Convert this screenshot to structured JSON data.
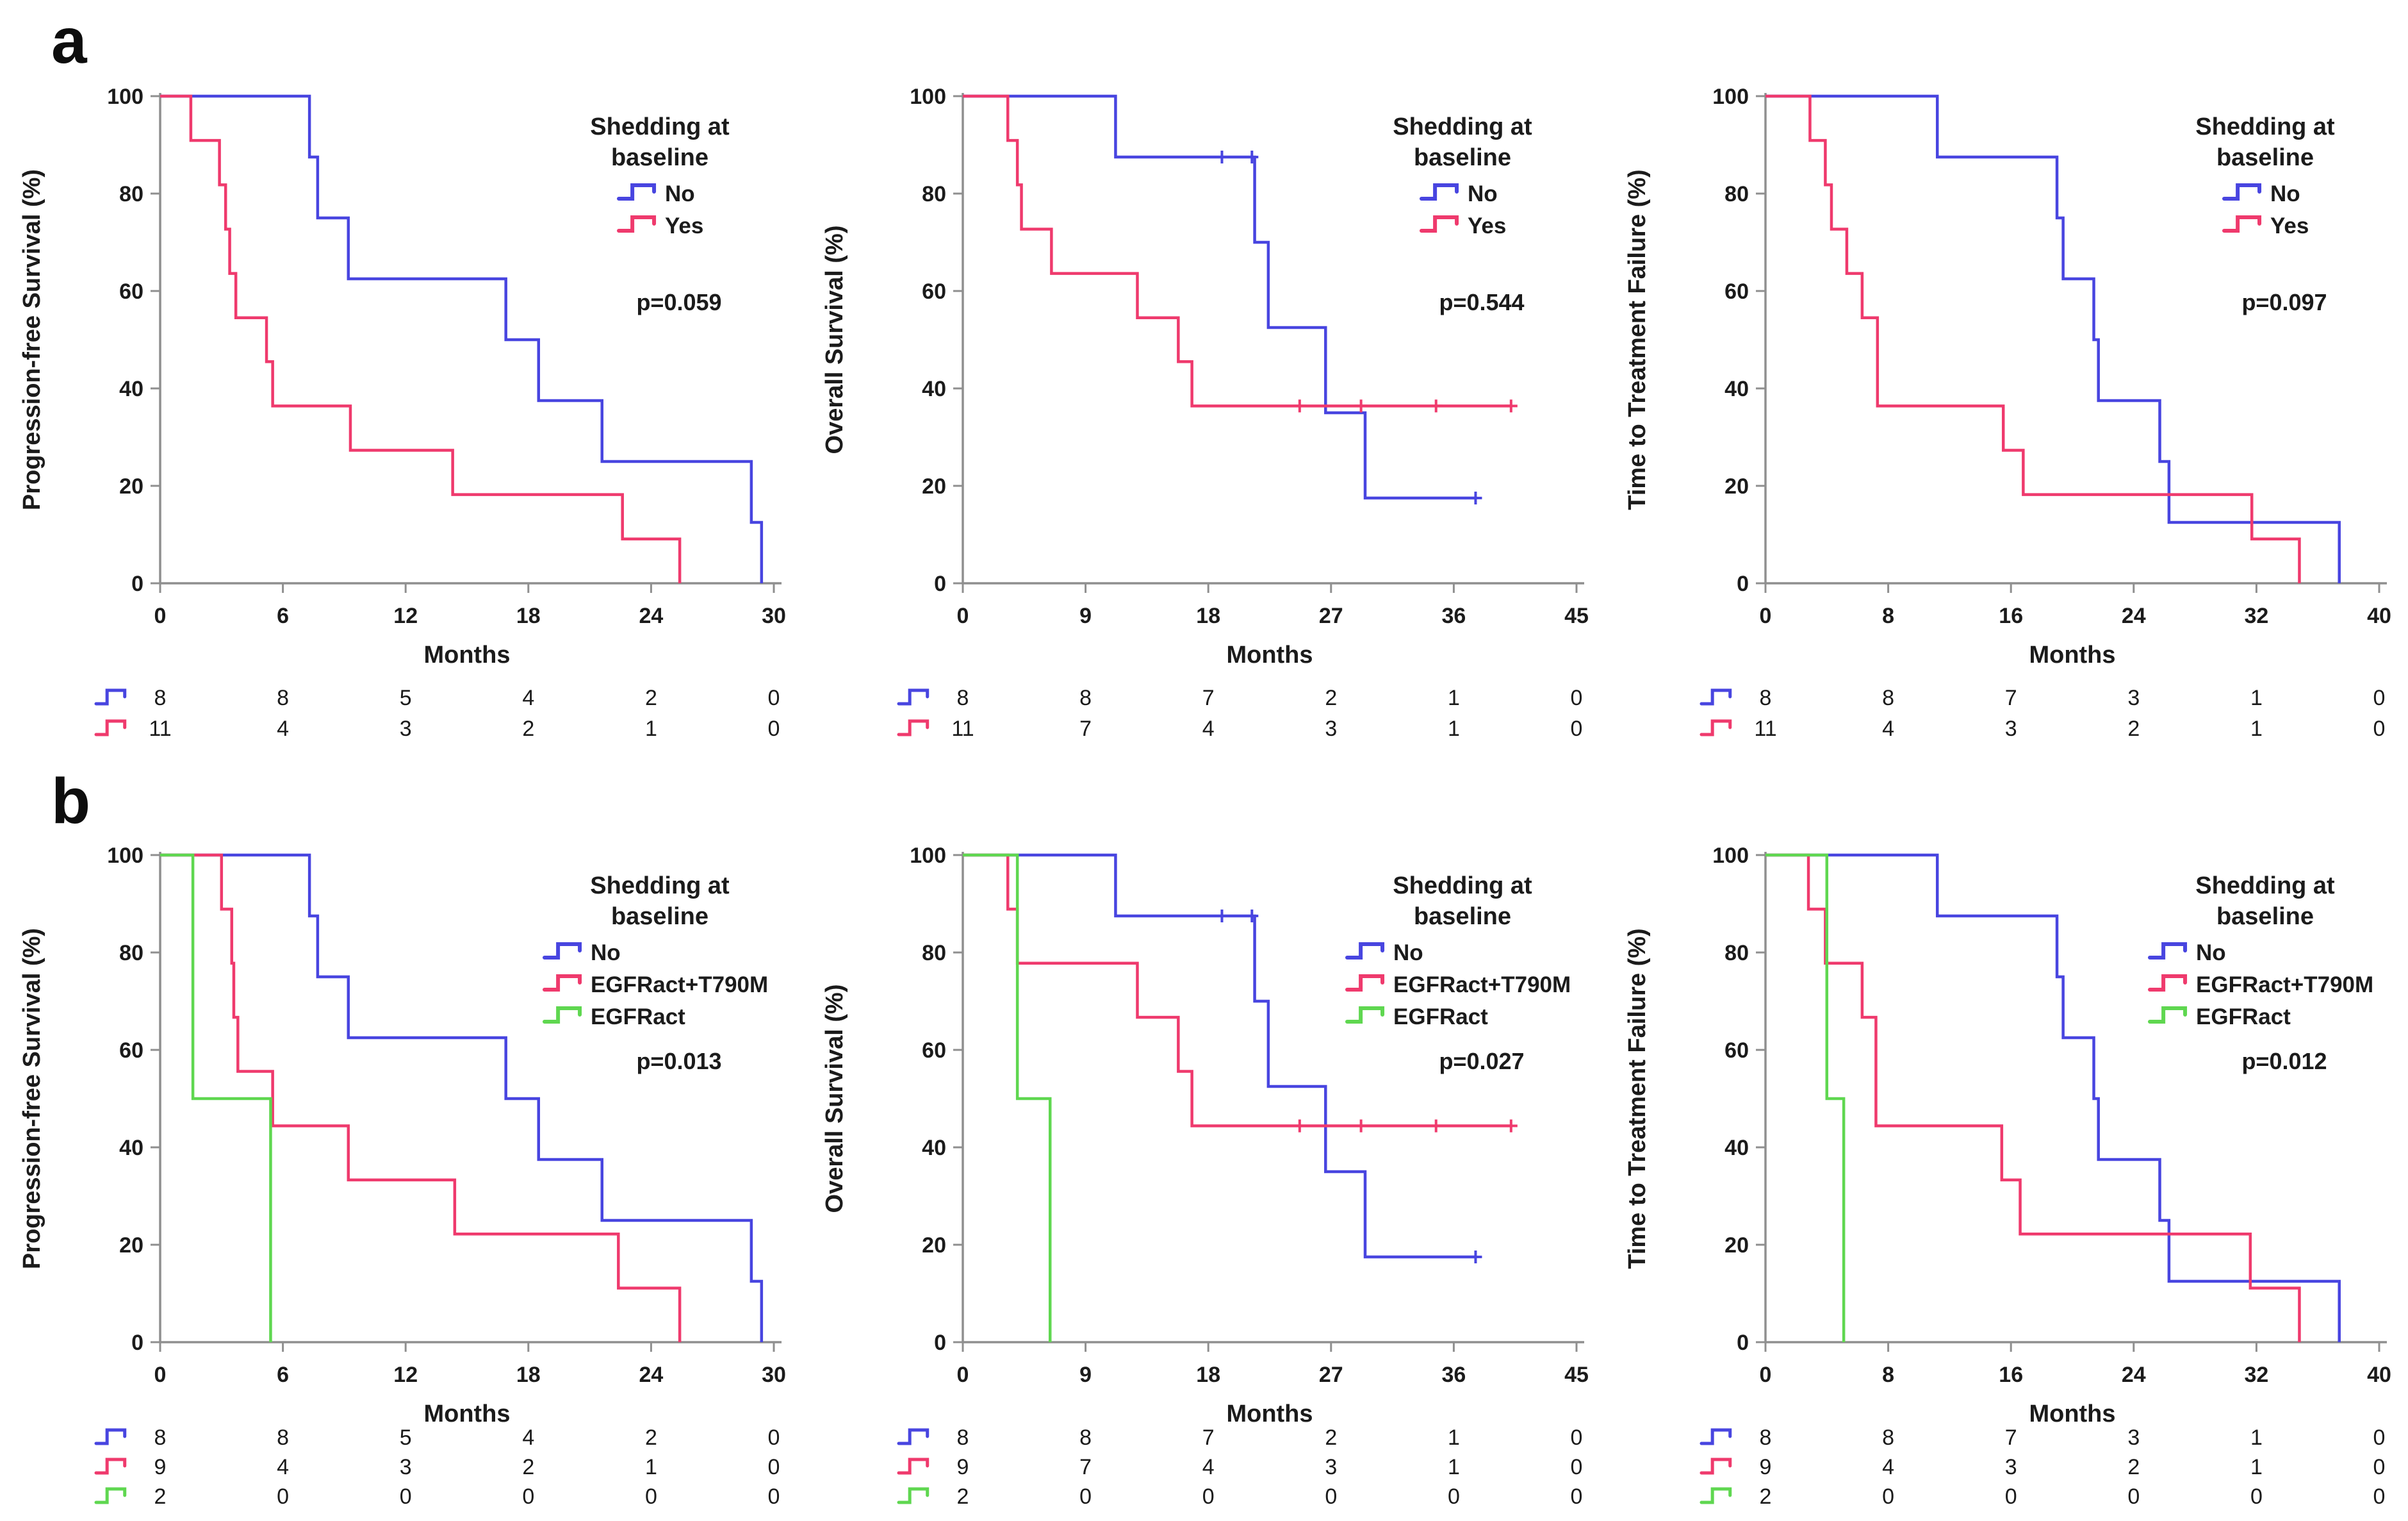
{
  "figure": {
    "background": "#ffffff",
    "rows": [
      {
        "label": "a"
      },
      {
        "label": "b"
      }
    ],
    "legend_title": [
      "Shedding at",
      "baseline"
    ],
    "xlabel": "Months"
  },
  "colors": {
    "no": "#4845e0",
    "yes": "#ef3a6d",
    "egfract_t790m": "#ef3a6d",
    "egfract": "#5fd750",
    "axis": "#8f8f8f",
    "text": "#1b1b1b"
  },
  "chart_data": [
    {
      "id": "a-progression-free-survival",
      "type": "line",
      "km_step": true,
      "ylabel": "Progression-free Survival (%)",
      "xlabel": "Months",
      "p_value": "p=0.059",
      "xlim": [
        0,
        30
      ],
      "xticks": [
        0,
        6,
        12,
        18,
        24,
        30
      ],
      "ylim": [
        0,
        100
      ],
      "yticks": [
        0,
        20,
        40,
        60,
        80,
        100
      ],
      "grid": false,
      "legend_position": "top-right",
      "legend_title": [
        "Shedding at",
        "baseline"
      ],
      "series": [
        {
          "name": "No",
          "color_key": "no",
          "censors": [],
          "steps": [
            [
              0,
              100
            ],
            [
              7.3,
              87.5
            ],
            [
              7.7,
              75
            ],
            [
              9.2,
              62.5
            ],
            [
              16.9,
              50
            ],
            [
              18.5,
              37.5
            ],
            [
              21.6,
              25
            ],
            [
              28.9,
              12.5
            ],
            [
              29.4,
              0
            ]
          ]
        },
        {
          "name": "Yes",
          "color_key": "yes",
          "censors": [],
          "steps": [
            [
              0,
              100
            ],
            [
              1.5,
              90.9
            ],
            [
              2.9,
              81.8
            ],
            [
              3.2,
              72.7
            ],
            [
              3.4,
              63.6
            ],
            [
              3.7,
              54.5
            ],
            [
              5.2,
              45.5
            ],
            [
              5.5,
              36.4
            ],
            [
              9.3,
              27.3
            ],
            [
              14.3,
              18.2
            ],
            [
              22.6,
              9.1
            ],
            [
              25.4,
              0
            ]
          ]
        }
      ],
      "at_risk": {
        "times": [
          0,
          6,
          12,
          18,
          24,
          30
        ],
        "rows": [
          {
            "name": "No",
            "color_key": "no",
            "counts": [
              8,
              8,
              5,
              4,
              2,
              0
            ]
          },
          {
            "name": "Yes",
            "color_key": "yes",
            "counts": [
              11,
              4,
              3,
              2,
              1,
              0
            ]
          }
        ]
      }
    },
    {
      "id": "a-overall-survival",
      "type": "line",
      "km_step": true,
      "ylabel": "Overall Survival (%)",
      "xlabel": "Months",
      "p_value": "p=0.544",
      "xlim": [
        0,
        45
      ],
      "xticks": [
        0,
        9,
        18,
        27,
        36,
        45
      ],
      "ylim": [
        0,
        100
      ],
      "yticks": [
        0,
        20,
        40,
        60,
        80,
        100
      ],
      "grid": false,
      "legend_position": "top-right",
      "legend_title": [
        "Shedding at",
        "baseline"
      ],
      "series": [
        {
          "name": "No",
          "color_key": "no",
          "end": 37.6,
          "censors": [
            [
              19,
              87.5
            ],
            [
              21.2,
              87.5
            ],
            [
              37.6,
              17.5
            ]
          ],
          "steps": [
            [
              0,
              100
            ],
            [
              11.2,
              87.5
            ],
            [
              21.4,
              70
            ],
            [
              22.4,
              52.5
            ],
            [
              26.6,
              35
            ],
            [
              29.5,
              17.5
            ]
          ]
        },
        {
          "name": "Yes",
          "color_key": "yes",
          "end": 40.2,
          "censors": [
            [
              24.7,
              36.4
            ],
            [
              29.2,
              36.4
            ],
            [
              34.7,
              36.4
            ],
            [
              40.2,
              36.4
            ]
          ],
          "steps": [
            [
              0,
              100
            ],
            [
              3.3,
              90.9
            ],
            [
              4,
              81.8
            ],
            [
              4.3,
              72.7
            ],
            [
              6.5,
              63.6
            ],
            [
              12.8,
              54.5
            ],
            [
              15.8,
              45.5
            ],
            [
              16.8,
              36.4
            ]
          ]
        }
      ],
      "at_risk": {
        "times": [
          0,
          9,
          18,
          27,
          36,
          45
        ],
        "rows": [
          {
            "name": "No",
            "color_key": "no",
            "counts": [
              8,
              8,
              7,
              2,
              1,
              0
            ]
          },
          {
            "name": "Yes",
            "color_key": "yes",
            "counts": [
              11,
              7,
              4,
              3,
              1,
              0
            ]
          }
        ]
      }
    },
    {
      "id": "a-time-to-treatment-failure",
      "type": "line",
      "km_step": true,
      "ylabel": "Time to Treatment Failure (%)",
      "xlabel": "Months",
      "p_value": "p=0.097",
      "xlim": [
        0,
        40
      ],
      "xticks": [
        0,
        8,
        16,
        24,
        32,
        40
      ],
      "ylim": [
        0,
        100
      ],
      "yticks": [
        0,
        20,
        40,
        60,
        80,
        100
      ],
      "grid": false,
      "legend_position": "top-right",
      "legend_title": [
        "Shedding at",
        "baseline"
      ],
      "series": [
        {
          "name": "No",
          "color_key": "no",
          "censors": [],
          "steps": [
            [
              0,
              100
            ],
            [
              11.2,
              87.5
            ],
            [
              19,
              75
            ],
            [
              19.4,
              62.5
            ],
            [
              21.4,
              50
            ],
            [
              21.7,
              37.5
            ],
            [
              25.7,
              25
            ],
            [
              26.3,
              12.5
            ],
            [
              37.4,
              0
            ]
          ]
        },
        {
          "name": "Yes",
          "color_key": "yes",
          "censors": [],
          "steps": [
            [
              0,
              100
            ],
            [
              2.9,
              90.9
            ],
            [
              3.9,
              81.8
            ],
            [
              4.3,
              72.7
            ],
            [
              5.3,
              63.6
            ],
            [
              6.3,
              54.5
            ],
            [
              7.3,
              36.4
            ],
            [
              15.5,
              27.3
            ],
            [
              16.8,
              18.2
            ],
            [
              31.7,
              9.1
            ],
            [
              34.8,
              0
            ]
          ]
        }
      ],
      "at_risk": {
        "times": [
          0,
          8,
          16,
          24,
          32,
          40
        ],
        "rows": [
          {
            "name": "No",
            "color_key": "no",
            "counts": [
              8,
              8,
              7,
              3,
              1,
              0
            ]
          },
          {
            "name": "Yes",
            "color_key": "yes",
            "counts": [
              11,
              4,
              3,
              2,
              1,
              0
            ]
          }
        ]
      }
    },
    {
      "id": "b-progression-free-survival",
      "type": "line",
      "km_step": true,
      "ylabel": "Progression-free Survival (%)",
      "xlabel": "Months",
      "p_value": "p=0.013",
      "xlim": [
        0,
        30
      ],
      "xticks": [
        0,
        6,
        12,
        18,
        24,
        30
      ],
      "ylim": [
        0,
        100
      ],
      "yticks": [
        0,
        20,
        40,
        60,
        80,
        100
      ],
      "grid": false,
      "legend_position": "top-right",
      "legend_title": [
        "Shedding at",
        "baseline"
      ],
      "series": [
        {
          "name": "No",
          "color_key": "no",
          "censors": [],
          "steps": [
            [
              0,
              100
            ],
            [
              7.3,
              87.5
            ],
            [
              7.7,
              75
            ],
            [
              9.2,
              62.5
            ],
            [
              16.9,
              50
            ],
            [
              18.5,
              37.5
            ],
            [
              21.6,
              25
            ],
            [
              28.9,
              12.5
            ],
            [
              29.4,
              0
            ]
          ]
        },
        {
          "name": "EGFRact+T790M",
          "color_key": "egfract_t790m",
          "censors": [],
          "steps": [
            [
              0,
              100
            ],
            [
              3,
              88.9
            ],
            [
              3.5,
              77.8
            ],
            [
              3.6,
              66.7
            ],
            [
              3.8,
              55.6
            ],
            [
              5.5,
              44.4
            ],
            [
              9.2,
              33.3
            ],
            [
              14.4,
              22.2
            ],
            [
              22.4,
              11.1
            ],
            [
              25.4,
              0
            ]
          ]
        },
        {
          "name": "EGFRact",
          "color_key": "egfract",
          "censors": [],
          "steps": [
            [
              0,
              100
            ],
            [
              1.6,
              50
            ],
            [
              5.4,
              0
            ]
          ]
        }
      ],
      "at_risk": {
        "times": [
          0,
          6,
          12,
          18,
          24,
          30
        ],
        "rows": [
          {
            "name": "No",
            "color_key": "no",
            "counts": [
              8,
              8,
              5,
              4,
              2,
              0
            ]
          },
          {
            "name": "EGFRact+T790M",
            "color_key": "egfract_t790m",
            "counts": [
              9,
              4,
              3,
              2,
              1,
              0
            ]
          },
          {
            "name": "EGFRact",
            "color_key": "egfract",
            "counts": [
              2,
              0,
              0,
              0,
              0,
              0
            ]
          }
        ]
      }
    },
    {
      "id": "b-overall-survival",
      "type": "line",
      "km_step": true,
      "ylabel": "Overall Survival (%)",
      "xlabel": "Months",
      "p_value": "p=0.027",
      "xlim": [
        0,
        45
      ],
      "xticks": [
        0,
        9,
        18,
        27,
        36,
        45
      ],
      "ylim": [
        0,
        100
      ],
      "yticks": [
        0,
        20,
        40,
        60,
        80,
        100
      ],
      "grid": false,
      "legend_position": "top-right",
      "legend_title": [
        "Shedding at",
        "baseline"
      ],
      "series": [
        {
          "name": "No",
          "color_key": "no",
          "end": 37.6,
          "censors": [
            [
              19,
              87.5
            ],
            [
              21.2,
              87.5
            ],
            [
              37.6,
              17.5
            ]
          ],
          "steps": [
            [
              0,
              100
            ],
            [
              11.2,
              87.5
            ],
            [
              21.4,
              70
            ],
            [
              22.4,
              52.5
            ],
            [
              26.6,
              35
            ],
            [
              29.5,
              17.5
            ]
          ]
        },
        {
          "name": "EGFRact+T790M",
          "color_key": "egfract_t790m",
          "end": 40.2,
          "censors": [
            [
              24.7,
              44.4
            ],
            [
              29.2,
              44.4
            ],
            [
              34.7,
              44.4
            ],
            [
              40.2,
              44.4
            ]
          ],
          "steps": [
            [
              0,
              100
            ],
            [
              3.3,
              88.9
            ],
            [
              4,
              77.8
            ],
            [
              12.8,
              66.7
            ],
            [
              15.8,
              55.6
            ],
            [
              16.8,
              44.4
            ]
          ]
        },
        {
          "name": "EGFRact",
          "color_key": "egfract",
          "censors": [],
          "steps": [
            [
              0,
              100
            ],
            [
              4,
              50
            ],
            [
              6.4,
              0
            ]
          ]
        }
      ],
      "at_risk": {
        "times": [
          0,
          9,
          18,
          27,
          36,
          45
        ],
        "rows": [
          {
            "name": "No",
            "color_key": "no",
            "counts": [
              8,
              8,
              7,
              2,
              1,
              0
            ]
          },
          {
            "name": "EGFRact+T790M",
            "color_key": "egfract_t790m",
            "counts": [
              9,
              7,
              4,
              3,
              1,
              0
            ]
          },
          {
            "name": "EGFRact",
            "color_key": "egfract",
            "counts": [
              2,
              0,
              0,
              0,
              0,
              0
            ]
          }
        ]
      }
    },
    {
      "id": "b-time-to-treatment-failure",
      "type": "line",
      "km_step": true,
      "ylabel": "Time to Treatment Failure (%)",
      "xlabel": "Months",
      "p_value": "p=0.012",
      "xlim": [
        0,
        40
      ],
      "xticks": [
        0,
        8,
        16,
        24,
        32,
        40
      ],
      "ylim": [
        0,
        100
      ],
      "yticks": [
        0,
        20,
        40,
        60,
        80,
        100
      ],
      "grid": false,
      "legend_position": "top-right",
      "legend_title": [
        "Shedding at",
        "baseline"
      ],
      "series": [
        {
          "name": "No",
          "color_key": "no",
          "censors": [],
          "steps": [
            [
              0,
              100
            ],
            [
              11.2,
              87.5
            ],
            [
              19,
              75
            ],
            [
              19.4,
              62.5
            ],
            [
              21.4,
              50
            ],
            [
              21.7,
              37.5
            ],
            [
              25.7,
              25
            ],
            [
              26.3,
              12.5
            ],
            [
              37.4,
              0
            ]
          ]
        },
        {
          "name": "EGFRact+T790M",
          "color_key": "egfract_t790m",
          "censors": [],
          "steps": [
            [
              0,
              100
            ],
            [
              2.8,
              88.9
            ],
            [
              3.9,
              77.8
            ],
            [
              6.3,
              66.7
            ],
            [
              7.2,
              44.4
            ],
            [
              15.4,
              33.3
            ],
            [
              16.6,
              22.2
            ],
            [
              31.6,
              11.1
            ],
            [
              34.8,
              0
            ]
          ]
        },
        {
          "name": "EGFRact",
          "color_key": "egfract",
          "censors": [],
          "steps": [
            [
              0,
              100
            ],
            [
              4,
              50
            ],
            [
              5.1,
              0
            ]
          ]
        }
      ],
      "at_risk": {
        "times": [
          0,
          8,
          16,
          24,
          32,
          40
        ],
        "rows": [
          {
            "name": "No",
            "color_key": "no",
            "counts": [
              8,
              8,
              7,
              3,
              1,
              0
            ]
          },
          {
            "name": "EGFRact+T790M",
            "color_key": "egfract_t790m",
            "counts": [
              9,
              4,
              3,
              2,
              1,
              0
            ]
          },
          {
            "name": "EGFRact",
            "color_key": "egfract",
            "counts": [
              2,
              0,
              0,
              0,
              0,
              0
            ]
          }
        ]
      }
    }
  ]
}
